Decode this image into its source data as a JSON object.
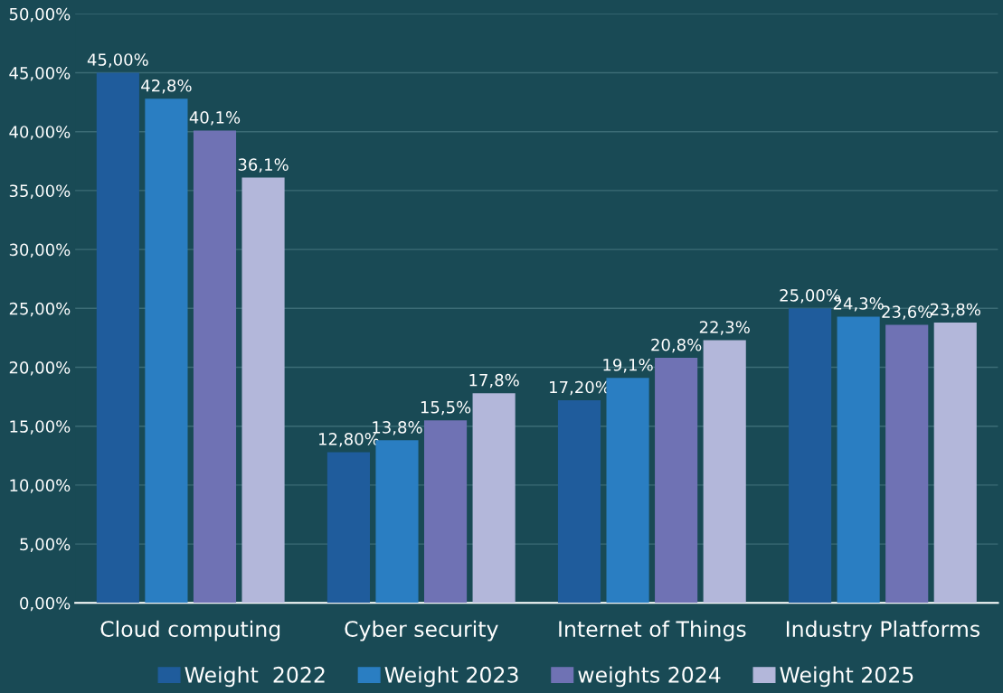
{
  "chart_data": {
    "type": "bar",
    "categories": [
      "Cloud computing",
      "Cyber security",
      "Internet of Things",
      "Industry Platforms"
    ],
    "series": [
      {
        "name": "Weight  2022",
        "color": "#1f5c9c",
        "values": [
          45.0,
          12.8,
          17.2,
          25.0
        ],
        "value_labels": [
          "45,00%",
          "12,80%",
          "17,20%",
          "25,00%"
        ]
      },
      {
        "name": "Weight 2023",
        "color": "#2a7ec2",
        "values": [
          42.8,
          13.8,
          19.1,
          24.3
        ],
        "value_labels": [
          "42,8%",
          "13,8%",
          "19,1%",
          "24,3%"
        ]
      },
      {
        "name": "weights 2024",
        "color": "#6f72b4",
        "values": [
          40.1,
          15.5,
          20.8,
          23.6
        ],
        "value_labels": [
          "40,1%",
          "15,5%",
          "20,8%",
          "23,6%"
        ]
      },
      {
        "name": "Weight 2025",
        "color": "#b3b7da",
        "values": [
          36.1,
          17.8,
          22.3,
          23.8
        ],
        "value_labels": [
          "36,1%",
          "17,8%",
          "22,3%",
          "23,8%"
        ]
      }
    ],
    "ylim": [
      0,
      50
    ],
    "yticks": [
      {
        "value": 0,
        "label": "0,00%"
      },
      {
        "value": 5,
        "label": "5,00%"
      },
      {
        "value": 10,
        "label": "10,00%"
      },
      {
        "value": 15,
        "label": "15,00%"
      },
      {
        "value": 20,
        "label": "20,00%"
      },
      {
        "value": 25,
        "label": "25,00%"
      },
      {
        "value": 30,
        "label": "30,00%"
      },
      {
        "value": 35,
        "label": "35,00%"
      },
      {
        "value": 40,
        "label": "40,00%"
      },
      {
        "value": 45,
        "label": "45,00%"
      },
      {
        "value": 50,
        "label": "50,00%"
      }
    ],
    "grid": "y",
    "legend": "bottom"
  }
}
